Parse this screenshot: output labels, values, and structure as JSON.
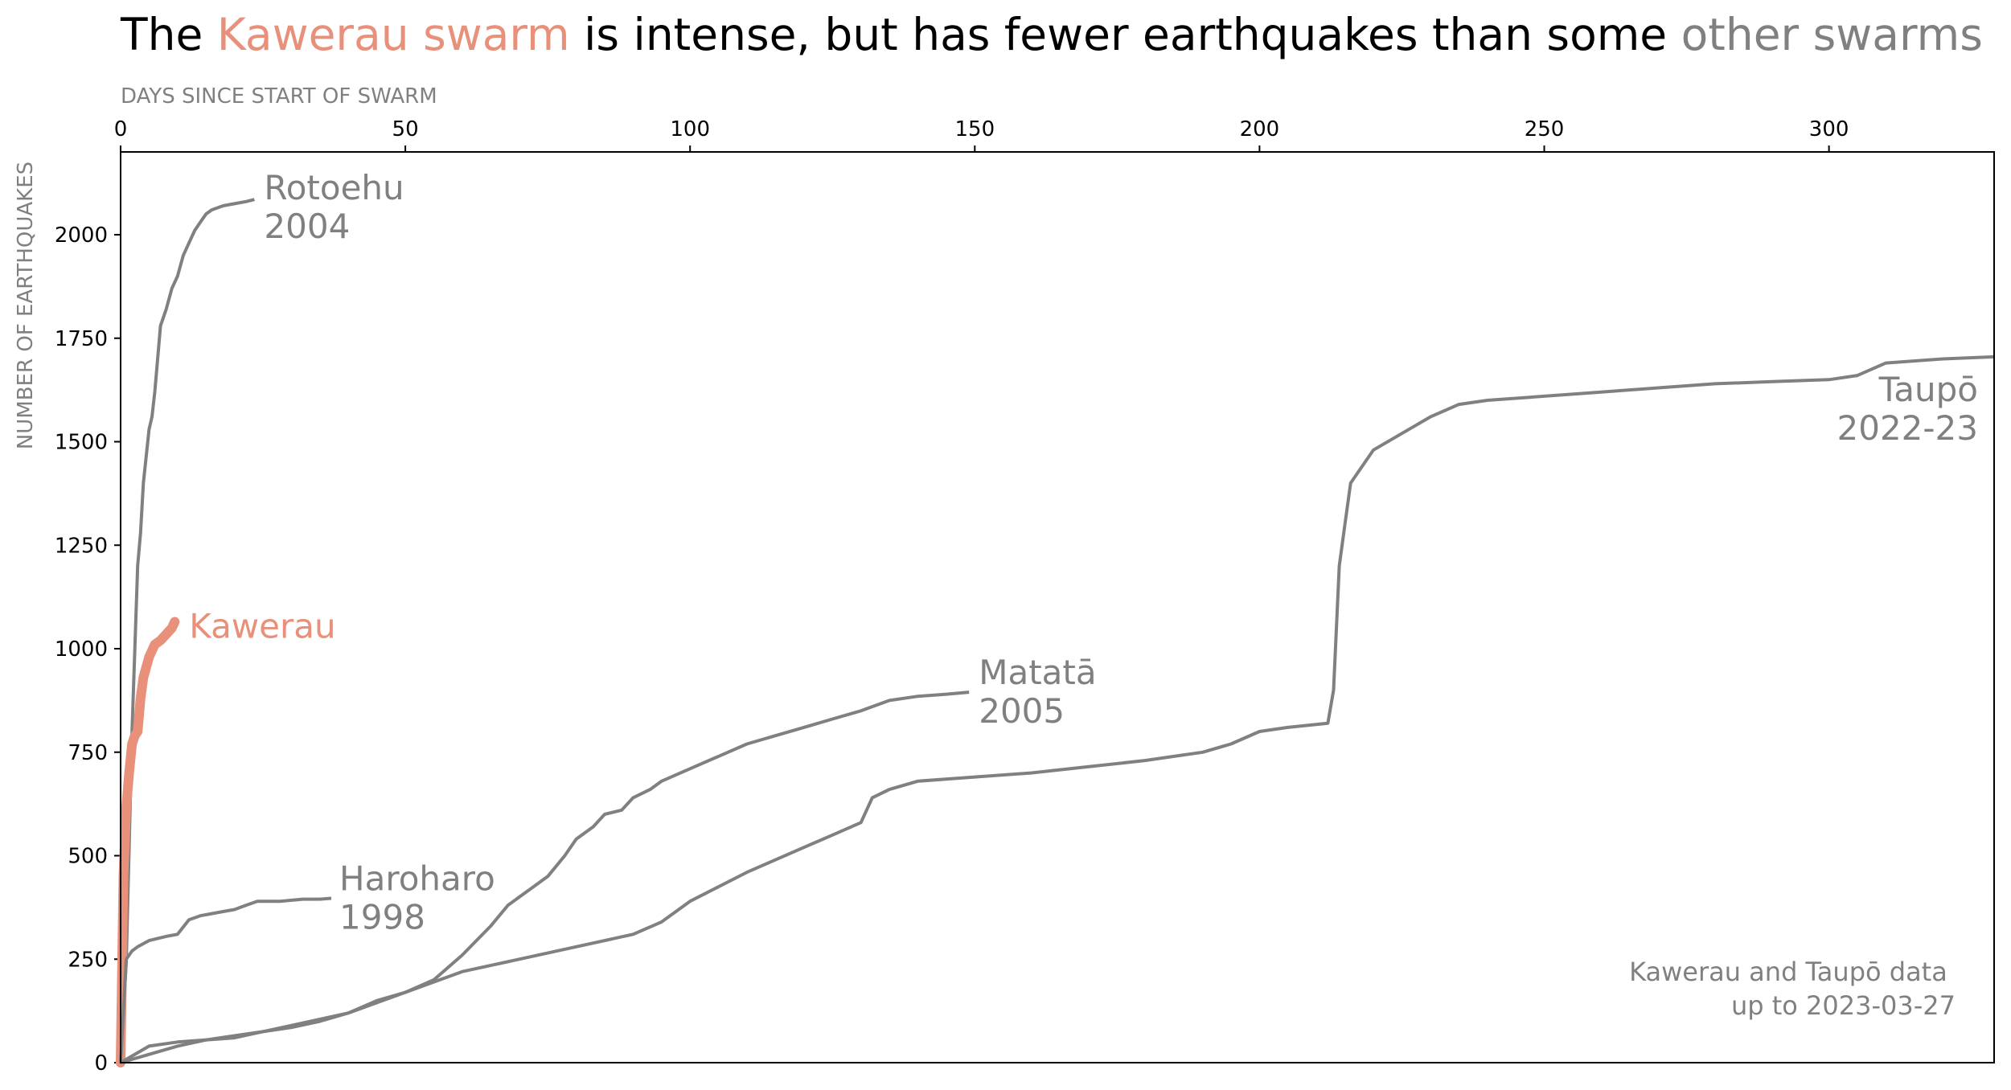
{
  "chart_data": {
    "type": "line",
    "title": {
      "parts": [
        {
          "text": "The ",
          "color": "#000000"
        },
        {
          "text": "Kawerau swarm",
          "color": "#E8907A"
        },
        {
          "text": " is intense, but has fewer earthquakes than some ",
          "color": "#000000"
        },
        {
          "text": "other swarms",
          "color": "#808080"
        }
      ]
    },
    "xlabel": "DAYS SINCE START OF SWARM",
    "ylabel": "NUMBER OF EARTHQUAKES",
    "xlim": [
      0,
      329
    ],
    "ylim": [
      0,
      2200
    ],
    "xticks": [
      0,
      50,
      100,
      150,
      200,
      250,
      300
    ],
    "yticks": [
      0,
      250,
      500,
      750,
      1000,
      1250,
      1500,
      1750,
      2000
    ],
    "x_axis_position": "top",
    "annotation": {
      "lines": [
        "Kawerau and Taupō data",
        "up to 2023-03-27"
      ]
    },
    "series": [
      {
        "name": "Rotoehu 2004",
        "label_lines": [
          "Rotoehu",
          "2004"
        ],
        "color": "#808080",
        "x": [
          0,
          1,
          2,
          2.5,
          3,
          3.5,
          4,
          5,
          5.5,
          6,
          7,
          8,
          9,
          10,
          11,
          12,
          13,
          14,
          15,
          16,
          18,
          20,
          22,
          23.5
        ],
        "y": [
          0,
          250,
          800,
          1000,
          1200,
          1280,
          1400,
          1530,
          1560,
          1620,
          1780,
          1820,
          1870,
          1900,
          1950,
          1980,
          2010,
          2030,
          2050,
          2060,
          2070,
          2075,
          2080,
          2085
        ]
      },
      {
        "name": "Kawerau",
        "label_lines": [
          "Kawerau"
        ],
        "color": "#E8907A",
        "x": [
          0,
          0.5,
          1,
          1.5,
          2,
          2.5,
          3,
          3.5,
          4,
          5,
          6,
          7,
          8,
          9,
          9.5
        ],
        "y": [
          0,
          450,
          620,
          700,
          770,
          790,
          800,
          880,
          930,
          980,
          1010,
          1020,
          1035,
          1050,
          1065
        ]
      },
      {
        "name": "Haroharo 1998",
        "label_lines": [
          "Haroharo",
          "1998"
        ],
        "color": "#808080",
        "x": [
          0,
          1,
          2,
          3,
          5,
          8,
          10,
          12,
          14,
          16,
          18,
          20,
          22,
          24,
          26,
          28,
          32,
          35,
          37
        ],
        "y": [
          0,
          250,
          270,
          280,
          295,
          305,
          310,
          345,
          355,
          360,
          365,
          370,
          380,
          390,
          390,
          390,
          395,
          395,
          397
        ]
      },
      {
        "name": "Matatā 2005",
        "label_lines": [
          "Matatā",
          "2005"
        ],
        "color": "#808080",
        "x": [
          0,
          5,
          10,
          15,
          20,
          25,
          30,
          35,
          40,
          45,
          50,
          55,
          60,
          65,
          68,
          70,
          72,
          75,
          78,
          80,
          83,
          85,
          88,
          90,
          93,
          95,
          100,
          105,
          110,
          115,
          120,
          125,
          130,
          135,
          140,
          145,
          149
        ],
        "y": [
          0,
          20,
          40,
          55,
          65,
          75,
          85,
          100,
          120,
          150,
          170,
          200,
          260,
          330,
          380,
          400,
          420,
          450,
          500,
          540,
          570,
          600,
          610,
          640,
          660,
          680,
          710,
          740,
          770,
          790,
          810,
          830,
          850,
          875,
          885,
          890,
          895
        ]
      },
      {
        "name": "Taupō 2022-23",
        "label_lines": [
          "Taupō",
          "2022-23"
        ],
        "color": "#808080",
        "x": [
          0,
          5,
          10,
          20,
          30,
          40,
          50,
          60,
          70,
          80,
          90,
          95,
          100,
          110,
          120,
          125,
          130,
          132,
          135,
          140,
          150,
          160,
          170,
          180,
          185,
          190,
          195,
          200,
          205,
          212,
          213,
          214,
          215,
          216,
          218,
          220,
          225,
          230,
          235,
          240,
          250,
          260,
          270,
          280,
          290,
          300,
          305,
          310,
          320,
          329
        ],
        "y": [
          0,
          40,
          50,
          60,
          90,
          120,
          170,
          220,
          250,
          280,
          310,
          340,
          390,
          460,
          520,
          550,
          580,
          640,
          660,
          680,
          690,
          700,
          715,
          730,
          740,
          750,
          770,
          800,
          810,
          820,
          900,
          1200,
          1300,
          1400,
          1440,
          1480,
          1520,
          1560,
          1590,
          1600,
          1610,
          1620,
          1630,
          1640,
          1645,
          1650,
          1660,
          1690,
          1700,
          1705
        ]
      }
    ]
  }
}
